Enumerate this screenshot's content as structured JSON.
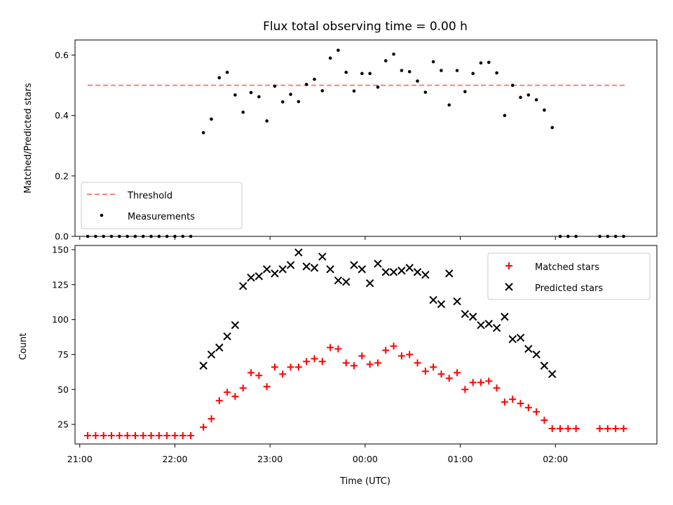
{
  "chart_data": [
    {
      "type": "scatter",
      "title": "Flux total observing time = 0.00 h",
      "xlabel": "",
      "ylabel": "Matched/Predicted stars",
      "ylim": [
        0,
        0.65
      ],
      "yticks": [
        0.0,
        0.2,
        0.4,
        0.6
      ],
      "ytick_labels": [
        "0.0",
        "0.2",
        "0.4",
        "0.6"
      ],
      "legend_position": "lower-left",
      "threshold": {
        "name": "Threshold",
        "value": 0.5,
        "x_start": "21:05",
        "x_end": "02:45",
        "color": "#ff7f7f"
      },
      "series": [
        {
          "name": "Measurements",
          "color": "#000000",
          "points": [
            [
              "21:05",
              0
            ],
            [
              "21:10",
              0
            ],
            [
              "21:15",
              0
            ],
            [
              "21:20",
              0
            ],
            [
              "21:25",
              0
            ],
            [
              "21:30",
              0
            ],
            [
              "21:35",
              0
            ],
            [
              "21:40",
              0
            ],
            [
              "21:45",
              0
            ],
            [
              "21:50",
              0
            ],
            [
              "21:55",
              0
            ],
            [
              "22:00",
              0
            ],
            [
              "22:05",
              0
            ],
            [
              "22:10",
              0
            ],
            [
              "22:18",
              0.343
            ],
            [
              "22:23",
              0.388
            ],
            [
              "22:28",
              0.525
            ],
            [
              "22:33",
              0.543
            ],
            [
              "22:38",
              0.468
            ],
            [
              "22:43",
              0.411
            ],
            [
              "22:48",
              0.476
            ],
            [
              "22:53",
              0.462
            ],
            [
              "22:58",
              0.382
            ],
            [
              "23:03",
              0.497
            ],
            [
              "23:08",
              0.445
            ],
            [
              "23:13",
              0.47
            ],
            [
              "23:18",
              0.446
            ],
            [
              "23:23",
              0.503
            ],
            [
              "23:28",
              0.52
            ],
            [
              "23:33",
              0.482
            ],
            [
              "23:38",
              0.59
            ],
            [
              "23:43",
              0.616
            ],
            [
              "23:48",
              0.543
            ],
            [
              "23:53",
              0.481
            ],
            [
              "23:58",
              0.539
            ],
            [
              "00:03",
              0.539
            ],
            [
              "00:08",
              0.494
            ],
            [
              "00:13",
              0.581
            ],
            [
              "00:18",
              0.603
            ],
            [
              "00:23",
              0.549
            ],
            [
              "00:28",
              0.545
            ],
            [
              "00:33",
              0.514
            ],
            [
              "00:38",
              0.477
            ],
            [
              "00:43",
              0.578
            ],
            [
              "00:48",
              0.549
            ],
            [
              "00:53",
              0.435
            ],
            [
              "00:58",
              0.549
            ],
            [
              "01:03",
              0.479
            ],
            [
              "01:08",
              0.539
            ],
            [
              "01:13",
              0.574
            ],
            [
              "01:18",
              0.576
            ],
            [
              "01:23",
              0.541
            ],
            [
              "01:28",
              0.4
            ],
            [
              "01:33",
              0.5
            ],
            [
              "01:38",
              0.46
            ],
            [
              "01:43",
              0.468
            ],
            [
              "01:48",
              0.452
            ],
            [
              "01:53",
              0.418
            ],
            [
              "01:58",
              0.36
            ],
            [
              "02:03",
              0
            ],
            [
              "02:08",
              0
            ],
            [
              "02:13",
              0
            ],
            [
              "02:28",
              0
            ],
            [
              "02:33",
              0
            ],
            [
              "02:38",
              0
            ],
            [
              "02:43",
              0
            ]
          ]
        }
      ]
    },
    {
      "type": "scatter",
      "title": "",
      "xlabel": "Time (UTC)",
      "ylabel": "Count",
      "ylim": [
        11,
        153
      ],
      "yticks": [
        25,
        50,
        75,
        100,
        125,
        150
      ],
      "ytick_labels": [
        "25",
        "50",
        "75",
        "100",
        "125",
        "150"
      ],
      "xlim": [
        "20:57",
        "03:04"
      ],
      "xticks": [
        "21:00",
        "22:00",
        "23:00",
        "00:00",
        "01:00",
        "02:00"
      ],
      "xtick_labels": [
        "21:00",
        "22:00",
        "23:00",
        "00:00",
        "01:00",
        "02:00"
      ],
      "legend_position": "top-right",
      "series": [
        {
          "name": "Matched stars",
          "marker": "plus",
          "color": "#ff0000",
          "points": [
            [
              "21:05",
              17
            ],
            [
              "21:10",
              17
            ],
            [
              "21:15",
              17
            ],
            [
              "21:20",
              17
            ],
            [
              "21:25",
              17
            ],
            [
              "21:30",
              17
            ],
            [
              "21:35",
              17
            ],
            [
              "21:40",
              17
            ],
            [
              "21:45",
              17
            ],
            [
              "21:50",
              17
            ],
            [
              "21:55",
              17
            ],
            [
              "22:00",
              17
            ],
            [
              "22:05",
              17
            ],
            [
              "22:10",
              17
            ],
            [
              "22:18",
              23
            ],
            [
              "22:23",
              29
            ],
            [
              "22:28",
              42
            ],
            [
              "22:33",
              48
            ],
            [
              "22:38",
              45
            ],
            [
              "22:43",
              51
            ],
            [
              "22:48",
              62
            ],
            [
              "22:53",
              60
            ],
            [
              "22:58",
              52
            ],
            [
              "23:03",
              66
            ],
            [
              "23:08",
              61
            ],
            [
              "23:13",
              66
            ],
            [
              "23:18",
              66
            ],
            [
              "23:23",
              70
            ],
            [
              "23:28",
              72
            ],
            [
              "23:33",
              70
            ],
            [
              "23:38",
              80
            ],
            [
              "23:43",
              79
            ],
            [
              "23:48",
              69
            ],
            [
              "23:53",
              67
            ],
            [
              "23:58",
              74
            ],
            [
              "00:03",
              68
            ],
            [
              "00:08",
              69
            ],
            [
              "00:13",
              78
            ],
            [
              "00:18",
              81
            ],
            [
              "00:23",
              74
            ],
            [
              "00:28",
              75
            ],
            [
              "00:33",
              69
            ],
            [
              "00:38",
              63
            ],
            [
              "00:43",
              66
            ],
            [
              "00:48",
              61
            ],
            [
              "00:53",
              58
            ],
            [
              "00:58",
              62
            ],
            [
              "01:03",
              50
            ],
            [
              "01:08",
              55
            ],
            [
              "01:13",
              55
            ],
            [
              "01:18",
              56
            ],
            [
              "01:23",
              51
            ],
            [
              "01:28",
              41
            ],
            [
              "01:33",
              43
            ],
            [
              "01:38",
              40
            ],
            [
              "01:43",
              37
            ],
            [
              "01:48",
              34
            ],
            [
              "01:53",
              28
            ],
            [
              "01:58",
              22
            ],
            [
              "02:03",
              22
            ],
            [
              "02:08",
              22
            ],
            [
              "02:13",
              22
            ],
            [
              "02:28",
              22
            ],
            [
              "02:33",
              22
            ],
            [
              "02:38",
              22
            ],
            [
              "02:43",
              22
            ]
          ]
        },
        {
          "name": "Predicted stars",
          "marker": "x",
          "color": "#000000",
          "points": [
            [
              "22:18",
              67
            ],
            [
              "22:23",
              75
            ],
            [
              "22:28",
              80
            ],
            [
              "22:33",
              88
            ],
            [
              "22:38",
              96
            ],
            [
              "22:43",
              124
            ],
            [
              "22:48",
              130
            ],
            [
              "22:53",
              131
            ],
            [
              "22:58",
              136
            ],
            [
              "23:03",
              133
            ],
            [
              "23:08",
              136
            ],
            [
              "23:13",
              139
            ],
            [
              "23:18",
              148
            ],
            [
              "23:23",
              138
            ],
            [
              "23:28",
              137
            ],
            [
              "23:33",
              145
            ],
            [
              "23:38",
              136
            ],
            [
              "23:43",
              128
            ],
            [
              "23:48",
              127
            ],
            [
              "23:53",
              139
            ],
            [
              "23:58",
              136
            ],
            [
              "00:03",
              126
            ],
            [
              "00:08",
              140
            ],
            [
              "00:13",
              134
            ],
            [
              "00:18",
              134
            ],
            [
              "00:23",
              135
            ],
            [
              "00:28",
              137
            ],
            [
              "00:33",
              134
            ],
            [
              "00:38",
              132
            ],
            [
              "00:43",
              114
            ],
            [
              "00:48",
              111
            ],
            [
              "00:53",
              133
            ],
            [
              "00:58",
              113
            ],
            [
              "01:03",
              104
            ],
            [
              "01:08",
              102
            ],
            [
              "01:13",
              96
            ],
            [
              "01:18",
              97
            ],
            [
              "01:23",
              94
            ],
            [
              "01:28",
              102
            ],
            [
              "01:33",
              86
            ],
            [
              "01:38",
              87
            ],
            [
              "01:43",
              79
            ],
            [
              "01:48",
              75
            ],
            [
              "01:53",
              67
            ],
            [
              "01:58",
              61
            ]
          ]
        }
      ]
    }
  ]
}
